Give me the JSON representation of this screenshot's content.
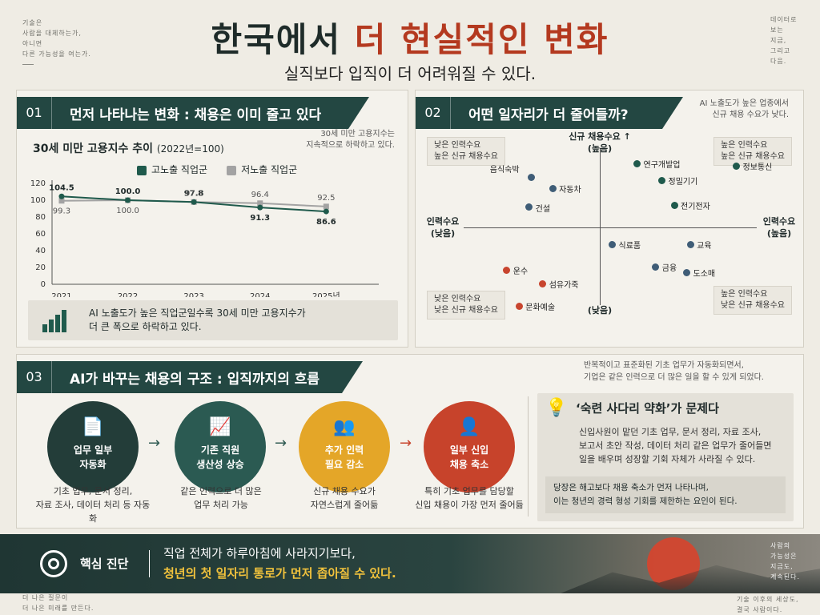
{
  "corner_notes": {
    "top_left": "기술은\n사람을 대체하는가,\n아니면\n다른 가능성을 여는가.",
    "top_right": "데이터로\n보는\n지금,\n그리고\n다음.",
    "bottom_left": "더 나은 질문이\n더 나은 미래를 만든다.",
    "bottom_right_a": "사람의\n가능성은\n지금도,\n계속된다.",
    "bottom_right_b": "기술 이후의 세상도,\n결국 사람이다."
  },
  "title": {
    "part1": "한국에서",
    "part2": "더 현실적인 변화",
    "subtitle": "실직보다 입직이 더 어려워질 수 있다."
  },
  "section1": {
    "num": "01",
    "header": "먼저 나타나는 변화 : 채용은 이미 줄고 있다",
    "chart_title": "30세 미만 고용지수 추이",
    "chart_title_note": "(2022년=100)",
    "side_note": "30세 미만 고용지수는\n지속적으로 하락하고 있다.",
    "callout": "AI 노출도가 높은 직업군일수록 30세 미만 고용지수가\n더 큰 폭으로 하락하고 있다.",
    "colors": {
      "high": "#1f5a4c",
      "low": "#a3a3a3"
    }
  },
  "chart_data": {
    "type": "line",
    "categories": [
      "2021",
      "2022",
      "2023",
      "2024",
      "2025년"
    ],
    "series": [
      {
        "name": "고노출 직업군",
        "values": [
          104.5,
          100.0,
          97.8,
          91.3,
          86.6
        ]
      },
      {
        "name": "저노출 직업군",
        "values": [
          99.3,
          100.0,
          97.8,
          96.4,
          92.5
        ]
      }
    ],
    "data_labels": {
      "high": [
        "104.5",
        "100.0",
        "97.8",
        "91.3",
        "86.6"
      ],
      "low": [
        "99.3",
        "100.0",
        "97.8",
        "96.4",
        "92.5"
      ]
    },
    "yticks": [
      "0",
      "20",
      "40",
      "60",
      "80",
      "100",
      "120"
    ],
    "ylim": [
      0,
      120
    ],
    "title": "30세 미만 고용지수 추이 (2022년=100)",
    "legend_position": "top"
  },
  "section2": {
    "num": "02",
    "header": "어떤 일자리가 더 줄어들까?",
    "side_note": "AI 노출도가 높은 업종에서\n신규 채용 수요가 낮다.",
    "axis_top": "신규 채용수요 ↑\n(높음)",
    "axis_bottom": "(낮음)",
    "axis_left": "인력수요\n(낮음)",
    "axis_right": "인력수요\n(높음)",
    "q_tl": "낮은 인력수요\n높은 신규 채용수요",
    "q_tr": "높은 인력수요\n높은 신규 채용수요",
    "q_bl": "낮은 인력수요\n낮은 신규 채용수요",
    "q_br": "높은 인력수요\n낮은 신규 채용수요",
    "colors": {
      "navy": "#3f5d77",
      "green": "#1f5a4c",
      "red": "#c8452e"
    },
    "points": [
      {
        "label": "음식숙박",
        "color": "navy",
        "workforce": -5.5,
        "new_hiring": 4.5
      },
      {
        "label": "자동차",
        "color": "navy",
        "workforce": -3.8,
        "new_hiring": 3.5
      },
      {
        "label": "건설",
        "color": "navy",
        "workforce": -5.7,
        "new_hiring": 1.8
      },
      {
        "label": "연구개발업",
        "color": "green",
        "workforce": 3.0,
        "new_hiring": 5.7
      },
      {
        "label": "정밀기기",
        "color": "green",
        "workforce": 5.0,
        "new_hiring": 4.2
      },
      {
        "label": "정보통신",
        "color": "green",
        "workforce": 11.0,
        "new_hiring": 5.5
      },
      {
        "label": "전기전자",
        "color": "green",
        "workforce": 6.0,
        "new_hiring": 2.0
      },
      {
        "label": "식료품",
        "color": "navy",
        "workforce": 1.0,
        "new_hiring": -1.5
      },
      {
        "label": "교육",
        "color": "navy",
        "workforce": 7.3,
        "new_hiring": -1.5
      },
      {
        "label": "금융",
        "color": "navy",
        "workforce": 4.5,
        "new_hiring": -3.5
      },
      {
        "label": "도소매",
        "color": "navy",
        "workforce": 7.0,
        "new_hiring": -4.0
      },
      {
        "label": "운수",
        "color": "red",
        "workforce": -7.5,
        "new_hiring": -3.8
      },
      {
        "label": "섬유가죽",
        "color": "red",
        "workforce": -4.6,
        "new_hiring": -5.0
      },
      {
        "label": "문화예술",
        "color": "red",
        "workforce": -6.5,
        "new_hiring": -7.0
      }
    ]
  },
  "section3": {
    "num": "03",
    "header": "AI가 바꾸는 채용의 구조 : 입직까지의 흐름",
    "side_note": "반복적이고 표준화된 기초 업무가 자동화되면서,\n기업은 같은 인력으로 더 많은 일을 할 수 있게 되었다.",
    "steps": [
      {
        "icon": "📄",
        "label": "업무 일부\n자동화",
        "color": "#233d39",
        "desc": "기초 업무, 문서 정리,\n자료 조사, 데이터 처리 등 자동화"
      },
      {
        "icon": "📈",
        "label": "기존 직원\n생산성 상승",
        "color": "#2b5a52",
        "desc": "같은 인력으로 더 많은\n업무 처리 가능"
      },
      {
        "icon": "👥",
        "label": "추가 인력\n필요 감소",
        "color": "#e4a628",
        "desc": "신규 채용 수요가\n자연스럽게 줄어듦"
      },
      {
        "icon": "👤",
        "label": "일부 신입\n채용 축소",
        "color": "#c7432b",
        "desc": "특히 기초 업무를 담당할\n신입 채용이 가장 먼저 줄어듦"
      }
    ],
    "arrows": [
      "→",
      "→",
      "→"
    ],
    "ladder": {
      "icon": "💡",
      "title": "‘숙련 사다리 약화’가 문제다",
      "body": "신입사원이 맡던 기초 업무, 문서 정리, 자료 조사,\n보고서 초안 작성, 데이터 처리 같은 업무가 줄어들면\n일을 배우며 성장할 기회 자체가 사라질 수 있다.",
      "note": "당장은 해고보다 채용 축소가 먼저 나타나며,\n이는 청년의 경력 형성 기회를 제한하는 요인이 된다."
    }
  },
  "bottom": {
    "label": "핵심 진단",
    "line1": "직업 전체가 하루아침에 사라지기보다,",
    "line2": "청년의 첫 일자리 통로가 먼저 좁아질 수 있다."
  }
}
